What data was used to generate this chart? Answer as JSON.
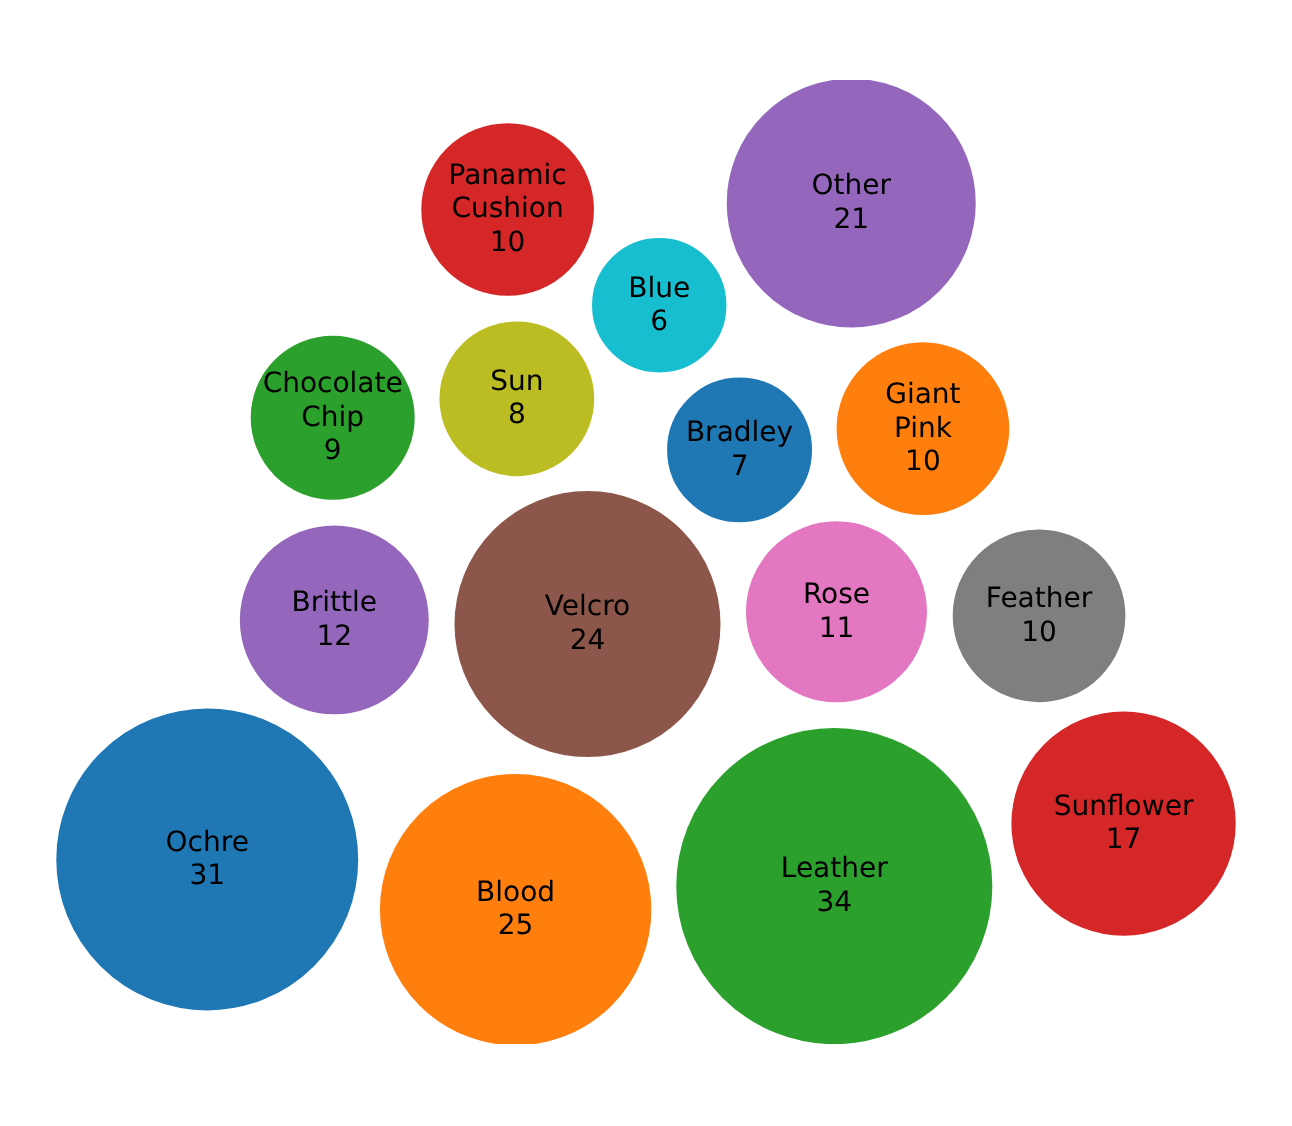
{
  "chart_data": {
    "type": "other",
    "categories": [
      "Ochre",
      "Blood",
      "Leather",
      "Sunflower",
      "Brittle",
      "Velcro",
      "Rose",
      "Feather",
      "Sun",
      "Blue",
      "Bradley",
      "Giant Pink",
      "Chocolate Chip",
      "Panamic Cushion",
      "Other"
    ],
    "values": [
      31,
      25,
      34,
      17,
      12,
      24,
      11,
      10,
      8,
      6,
      7,
      10,
      9,
      10,
      21
    ],
    "colors": [
      "#1f77b4",
      "#ff7f0e",
      "#2ca02c",
      "#d62728",
      "#9467bd",
      "#8c564b",
      "#e377c2",
      "#7f7f7f",
      "#bcbd22",
      "#17becf",
      "#1f77b4",
      "#ff7f0e",
      "#2ca02c",
      "#d62728",
      "#9467bd"
    ],
    "data_labels": true
  }
}
